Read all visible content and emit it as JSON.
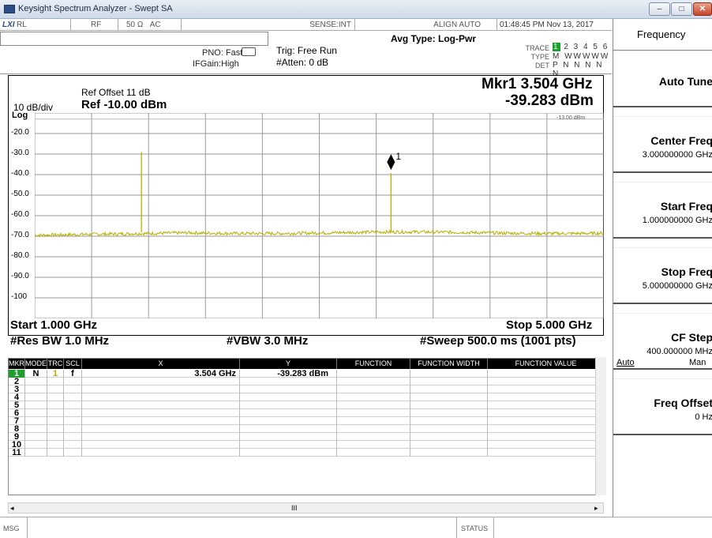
{
  "window": {
    "title": "Keysight Spectrum Analyzer - Swept SA",
    "min_glyph": "–",
    "max_glyph": "□",
    "close_glyph": "✕"
  },
  "header": {
    "lxi": "LXI",
    "rl": "RL",
    "rf": "RF",
    "impedance": "50 Ω",
    "coupling": "AC",
    "sense": "SENSE:INT",
    "align": "ALIGN AUTO",
    "time": "01:48:45 PM Nov 13, 2017",
    "pno": "PNO: Fast",
    "ifgain": "IFGain:High",
    "trig": "Trig: Free Run",
    "atten": "#Atten: 0 dB",
    "avg_type": "Avg Type: Log-Pwr",
    "trace_label": "TRACE",
    "trace_first": "1",
    "trace_rest": "2 3 4 5 6",
    "type_label": "TYPE",
    "type_value": "M WWWWW",
    "det_label": "DET",
    "det_value": "P N N N N N"
  },
  "display": {
    "ref_offset": "Ref Offset 11 dB",
    "scale_div": "10 dB/div",
    "ref_level": "Ref -10.00 dBm",
    "scale_type": "Log",
    "marker_label": "Mkr1 3.504 GHz",
    "marker_value": "-39.283 dBm",
    "display_line": "-13.00 dBm",
    "marker_number": "1",
    "start": "Start 1.000 GHz",
    "stop": "Stop 5.000 GHz",
    "res_bw": "#Res BW 1.0 MHz",
    "vbw": "#VBW 3.0 MHz",
    "sweep": "#Sweep  500.0 ms (1001 pts)",
    "y_labels": [
      "-20.0",
      "-30.0",
      "-40.0",
      "-50.0",
      "-60.0",
      "-70.0",
      "-80.0",
      "-90.0",
      "-100"
    ]
  },
  "chart_data": {
    "type": "line",
    "x_unit": "GHz",
    "y_unit": "dBm",
    "xlim": [
      1.0,
      5.0
    ],
    "ylim": [
      -110,
      -10
    ],
    "noise_floor": -68,
    "display_line": -13,
    "peaks": [
      {
        "x": 1.75,
        "y": -29
      },
      {
        "x": 3.504,
        "y": -39.283
      }
    ]
  },
  "marker_table": {
    "headers": [
      "MKR",
      "MODE",
      "TRC",
      "SCL",
      "X",
      "Y",
      "FUNCTION",
      "FUNCTION WIDTH",
      "FUNCTION VALUE"
    ],
    "rows": [
      {
        "mkr": "1",
        "mode": "N",
        "trc": "1",
        "scl": "f",
        "x": "3.504 GHz",
        "y": "-39.283 dBm"
      },
      {
        "mkr": "2",
        "mode": "",
        "trc": "",
        "scl": "",
        "x": "",
        "y": ""
      },
      {
        "mkr": "3",
        "mode": "",
        "trc": "",
        "scl": "",
        "x": "",
        "y": ""
      },
      {
        "mkr": "4",
        "mode": "",
        "trc": "",
        "scl": "",
        "x": "",
        "y": ""
      },
      {
        "mkr": "5",
        "mode": "",
        "trc": "",
        "scl": "",
        "x": "",
        "y": ""
      },
      {
        "mkr": "6",
        "mode": "",
        "trc": "",
        "scl": "",
        "x": "",
        "y": ""
      },
      {
        "mkr": "7",
        "mode": "",
        "trc": "",
        "scl": "",
        "x": "",
        "y": ""
      },
      {
        "mkr": "8",
        "mode": "",
        "trc": "",
        "scl": "",
        "x": "",
        "y": ""
      },
      {
        "mkr": "9",
        "mode": "",
        "trc": "",
        "scl": "",
        "x": "",
        "y": ""
      },
      {
        "mkr": "10",
        "mode": "",
        "trc": "",
        "scl": "",
        "x": "",
        "y": ""
      },
      {
        "mkr": "11",
        "mode": "",
        "trc": "",
        "scl": "",
        "x": "",
        "y": ""
      }
    ],
    "scroll_glyph": "III"
  },
  "statusbar": {
    "msg": "MSG",
    "status": "STATUS"
  },
  "softkeys": {
    "title": "Frequency",
    "items": [
      {
        "label": "Auto Tune",
        "value": ""
      },
      {
        "label": "Center Freq",
        "value": "3.000000000 GHz"
      },
      {
        "label": "Start Freq",
        "value": "1.000000000 GHz"
      },
      {
        "label": "Stop Freq",
        "value": "5.000000000 GHz"
      },
      {
        "label": "CF Step",
        "value": "400.000000 MHz",
        "auto": "Auto",
        "man": "Man"
      },
      {
        "label": "Freq Offset",
        "value": "0 Hz"
      }
    ]
  }
}
